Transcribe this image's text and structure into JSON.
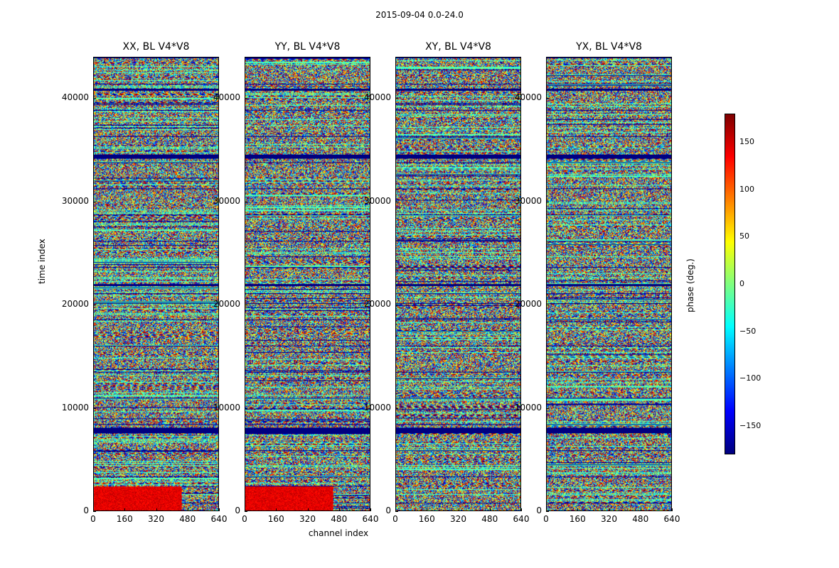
{
  "chart_data": {
    "type": "heatmap",
    "suptitle": "2015-09-04 0.0-24.0",
    "panels": [
      {
        "title": "XX, BL V4*V8",
        "pol": "XX"
      },
      {
        "title": "YY, BL V4*V8",
        "pol": "YY"
      },
      {
        "title": "XY, BL V4*V8",
        "pol": "XY"
      },
      {
        "title": "YX, BL V4*V8",
        "pol": "YX"
      }
    ],
    "xlabel": "channel index",
    "ylabel": "time index",
    "xlim": [
      0,
      640
    ],
    "ylim": [
      0,
      44000
    ],
    "xticks": [
      "0",
      "160",
      "320",
      "480",
      "640"
    ],
    "xtick_values": [
      0,
      160,
      320,
      480,
      640
    ],
    "yticks": [
      "0",
      "10000",
      "20000",
      "30000",
      "40000"
    ],
    "ytick_values": [
      0,
      10000,
      20000,
      30000,
      40000
    ],
    "colorbar": {
      "label": "phase (deg.)",
      "range": [
        -180,
        180
      ],
      "colormap": "jet",
      "ticks": [
        "150",
        "100",
        "50",
        "0",
        "−50",
        "−100",
        "−150"
      ],
      "tick_values": [
        150,
        100,
        50,
        0,
        -50,
        -100,
        -150
      ]
    },
    "flagged_rows": [
      {
        "from": 7500,
        "to": 8100,
        "value": -180
      },
      {
        "from": 34200,
        "to": 34600,
        "value": -180
      },
      {
        "from": 40800,
        "to": 41000,
        "value": -180
      },
      {
        "from": 21800,
        "to": 22000,
        "value": -180
      },
      {
        "from": 20100,
        "to": 20200,
        "value": -180
      }
    ]
  }
}
